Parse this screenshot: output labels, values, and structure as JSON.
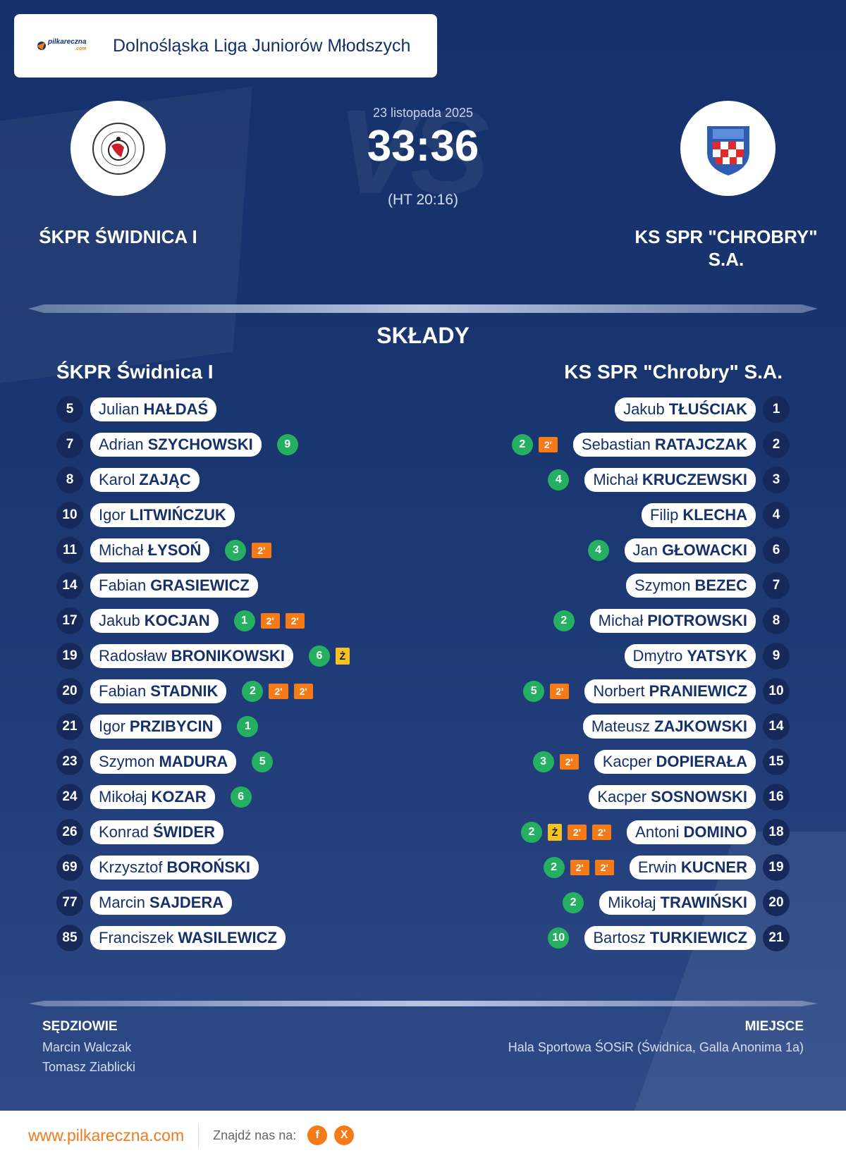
{
  "league": {
    "title": "Dolnośląska Liga Juniorów Młodszych",
    "brand": "pilkareczna",
    "brand_suffix": ".com"
  },
  "match": {
    "date": "23 listopada 2025",
    "score": "33:36",
    "half_time": "(HT 20:16)",
    "vs": "VS",
    "home_name": "ŚKPR ŚWIDNICA I",
    "away_name": "KS SPR \"CHROBRY\" S.A."
  },
  "lineups": {
    "title": "SKŁADY",
    "home_team": "ŚKPR Świdnica I",
    "away_team": "KS SPR \"Chrobry\" S.A.",
    "home": [
      {
        "number": "5",
        "first": "Julian",
        "last": "HAŁDAŚ",
        "events": []
      },
      {
        "number": "7",
        "first": "Adrian",
        "last": "SZYCHOWSKI",
        "events": [
          {
            "type": "goal",
            "text": "9"
          }
        ]
      },
      {
        "number": "8",
        "first": "Karol",
        "last": "ZAJĄC",
        "events": []
      },
      {
        "number": "10",
        "first": "Igor",
        "last": "LITWIŃCZUK",
        "events": []
      },
      {
        "number": "11",
        "first": "Michał",
        "last": "ŁYSOŃ",
        "events": [
          {
            "type": "goal",
            "text": "3"
          },
          {
            "type": "pen",
            "text": "2'"
          }
        ]
      },
      {
        "number": "14",
        "first": "Fabian",
        "last": "GRASIEWICZ",
        "events": []
      },
      {
        "number": "17",
        "first": "Jakub",
        "last": "KOCJAN",
        "events": [
          {
            "type": "goal",
            "text": "1"
          },
          {
            "type": "pen",
            "text": "2'"
          },
          {
            "type": "pen",
            "text": "2'"
          }
        ]
      },
      {
        "number": "19",
        "first": "Radosław",
        "last": "BRONIKOWSKI",
        "events": [
          {
            "type": "goal",
            "text": "6"
          },
          {
            "type": "yc",
            "text": "Ż"
          }
        ]
      },
      {
        "number": "20",
        "first": "Fabian",
        "last": "STADNIK",
        "events": [
          {
            "type": "goal",
            "text": "2"
          },
          {
            "type": "pen",
            "text": "2'"
          },
          {
            "type": "pen",
            "text": "2'"
          }
        ]
      },
      {
        "number": "21",
        "first": "Igor",
        "last": "PRZIBYCIN",
        "events": [
          {
            "type": "goal",
            "text": "1"
          }
        ]
      },
      {
        "number": "23",
        "first": "Szymon",
        "last": "MADURA",
        "events": [
          {
            "type": "goal",
            "text": "5"
          }
        ]
      },
      {
        "number": "24",
        "first": "Mikołaj",
        "last": "KOZAR",
        "events": [
          {
            "type": "goal",
            "text": "6"
          }
        ]
      },
      {
        "number": "26",
        "first": "Konrad",
        "last": "ŚWIDER",
        "events": []
      },
      {
        "number": "69",
        "first": "Krzysztof",
        "last": "BOROŃSKI",
        "events": []
      },
      {
        "number": "77",
        "first": "Marcin",
        "last": "SAJDERA",
        "events": []
      },
      {
        "number": "85",
        "first": "Franciszek",
        "last": "WASILEWICZ",
        "events": []
      }
    ],
    "away": [
      {
        "number": "1",
        "first": "Jakub",
        "last": "TŁUŚCIAK",
        "events": []
      },
      {
        "number": "2",
        "first": "Sebastian",
        "last": "RATAJCZAK",
        "events": [
          {
            "type": "goal",
            "text": "2"
          },
          {
            "type": "pen",
            "text": "2'"
          }
        ]
      },
      {
        "number": "3",
        "first": "Michał",
        "last": "KRUCZEWSKI",
        "events": [
          {
            "type": "goal",
            "text": "4"
          }
        ]
      },
      {
        "number": "4",
        "first": "Filip",
        "last": "KLECHA",
        "events": []
      },
      {
        "number": "6",
        "first": "Jan",
        "last": "GŁOWACKI",
        "events": [
          {
            "type": "goal",
            "text": "4"
          }
        ]
      },
      {
        "number": "7",
        "first": "Szymon",
        "last": "BEZEC",
        "events": []
      },
      {
        "number": "8",
        "first": "Michał",
        "last": "PIOTROWSKI",
        "events": [
          {
            "type": "goal",
            "text": "2"
          }
        ]
      },
      {
        "number": "9",
        "first": "Dmytro",
        "last": "YATSYK",
        "events": []
      },
      {
        "number": "10",
        "first": "Norbert",
        "last": "PRANIEWICZ",
        "events": [
          {
            "type": "goal",
            "text": "5"
          },
          {
            "type": "pen",
            "text": "2'"
          }
        ]
      },
      {
        "number": "14",
        "first": "Mateusz",
        "last": "ZAJKOWSKI",
        "events": []
      },
      {
        "number": "15",
        "first": "Kacper",
        "last": "DOPIERAŁA",
        "events": [
          {
            "type": "goal",
            "text": "3"
          },
          {
            "type": "pen",
            "text": "2'"
          }
        ]
      },
      {
        "number": "16",
        "first": "Kacper",
        "last": "SOSNOWSKI",
        "events": []
      },
      {
        "number": "18",
        "first": "Antoni",
        "last": "DOMINO",
        "events": [
          {
            "type": "goal",
            "text": "2"
          },
          {
            "type": "yc",
            "text": "Ż"
          },
          {
            "type": "pen",
            "text": "2'"
          },
          {
            "type": "pen",
            "text": "2'"
          }
        ]
      },
      {
        "number": "19",
        "first": "Erwin",
        "last": "KUCNER",
        "events": [
          {
            "type": "goal",
            "text": "2"
          },
          {
            "type": "pen",
            "text": "2'"
          },
          {
            "type": "pen",
            "text": "2'"
          }
        ]
      },
      {
        "number": "20",
        "first": "Mikołaj",
        "last": "TRAWIŃSKI",
        "events": [
          {
            "type": "goal",
            "text": "2"
          }
        ]
      },
      {
        "number": "21",
        "first": "Bartosz",
        "last": "TURKIEWICZ",
        "events": [
          {
            "type": "goal",
            "text": "10"
          }
        ]
      }
    ]
  },
  "officials": {
    "label": "SĘDZIOWIE",
    "names": [
      "Marcin Walczak",
      "Tomasz Ziablicki"
    ]
  },
  "venue": {
    "label": "MIEJSCE",
    "name": "Hala Sportowa ŚOSiR (Świdnica, Galla Anonima 1a)"
  },
  "footer": {
    "site": "www.pilkareczna.com",
    "find_us": "Znajdź nas na:",
    "social": [
      "f",
      "X"
    ]
  },
  "colors": {
    "background": "#1a3670",
    "accent": "#f07a1a",
    "goal": "#25b061",
    "penalty": "#f47b18",
    "yellow_card": "#f6c223"
  },
  "icons": [
    "pilkareczna-logo-icon",
    "skpr-swidnica-crest-icon",
    "chrobry-crest-icon",
    "facebook-icon",
    "x-icon"
  ]
}
